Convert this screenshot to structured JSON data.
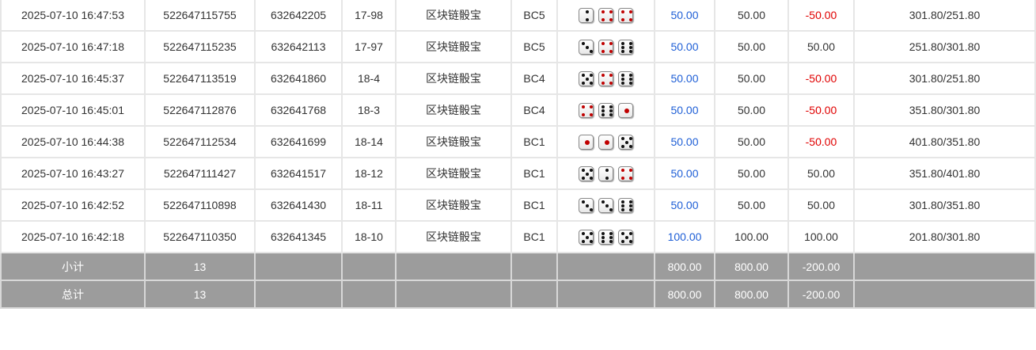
{
  "rows": [
    {
      "time": "2025-07-10 16:47:53",
      "order": "522647115755",
      "issue": "632642205",
      "table": "17-98",
      "game": "区块链骰宝",
      "bet_type": "BC5",
      "dice": [
        2,
        4,
        4
      ],
      "bet": "50.00",
      "valid": "50.00",
      "win": "-50.00",
      "balance": "301.80/251.80"
    },
    {
      "time": "2025-07-10 16:47:18",
      "order": "522647115235",
      "issue": "632642113",
      "table": "17-97",
      "game": "区块链骰宝",
      "bet_type": "BC5",
      "dice": [
        3,
        4,
        6
      ],
      "bet": "50.00",
      "valid": "50.00",
      "win": "50.00",
      "balance": "251.80/301.80"
    },
    {
      "time": "2025-07-10 16:45:37",
      "order": "522647113519",
      "issue": "632641860",
      "table": "18-4",
      "game": "区块链骰宝",
      "bet_type": "BC4",
      "dice": [
        5,
        4,
        6
      ],
      "bet": "50.00",
      "valid": "50.00",
      "win": "-50.00",
      "balance": "301.80/251.80"
    },
    {
      "time": "2025-07-10 16:45:01",
      "order": "522647112876",
      "issue": "632641768",
      "table": "18-3",
      "game": "区块链骰宝",
      "bet_type": "BC4",
      "dice": [
        4,
        6,
        1
      ],
      "bet": "50.00",
      "valid": "50.00",
      "win": "-50.00",
      "balance": "351.80/301.80"
    },
    {
      "time": "2025-07-10 16:44:38",
      "order": "522647112534",
      "issue": "632641699",
      "table": "18-14",
      "game": "区块链骰宝",
      "bet_type": "BC1",
      "dice": [
        1,
        1,
        5
      ],
      "bet": "50.00",
      "valid": "50.00",
      "win": "-50.00",
      "balance": "401.80/351.80"
    },
    {
      "time": "2025-07-10 16:43:27",
      "order": "522647111427",
      "issue": "632641517",
      "table": "18-12",
      "game": "区块链骰宝",
      "bet_type": "BC1",
      "dice": [
        5,
        2,
        4
      ],
      "bet": "50.00",
      "valid": "50.00",
      "win": "50.00",
      "balance": "351.80/401.80"
    },
    {
      "time": "2025-07-10 16:42:52",
      "order": "522647110898",
      "issue": "632641430",
      "table": "18-11",
      "game": "区块链骰宝",
      "bet_type": "BC1",
      "dice": [
        3,
        3,
        6
      ],
      "bet": "50.00",
      "valid": "50.00",
      "win": "50.00",
      "balance": "301.80/351.80"
    },
    {
      "time": "2025-07-10 16:42:18",
      "order": "522647110350",
      "issue": "632641345",
      "table": "18-10",
      "game": "区块链骰宝",
      "bet_type": "BC1",
      "dice": [
        5,
        6,
        5
      ],
      "bet": "100.00",
      "valid": "100.00",
      "win": "100.00",
      "balance": "201.80/301.80"
    }
  ],
  "subtotal": {
    "label": "小计",
    "count": "13",
    "bet": "800.00",
    "valid": "800.00",
    "win": "-200.00"
  },
  "total": {
    "label": "总计",
    "count": "13",
    "bet": "800.00",
    "valid": "800.00",
    "win": "-200.00"
  },
  "colors": {
    "bet": "#1f5fd6",
    "negative": "#e00000",
    "summary_bg": "#9c9c9c"
  }
}
